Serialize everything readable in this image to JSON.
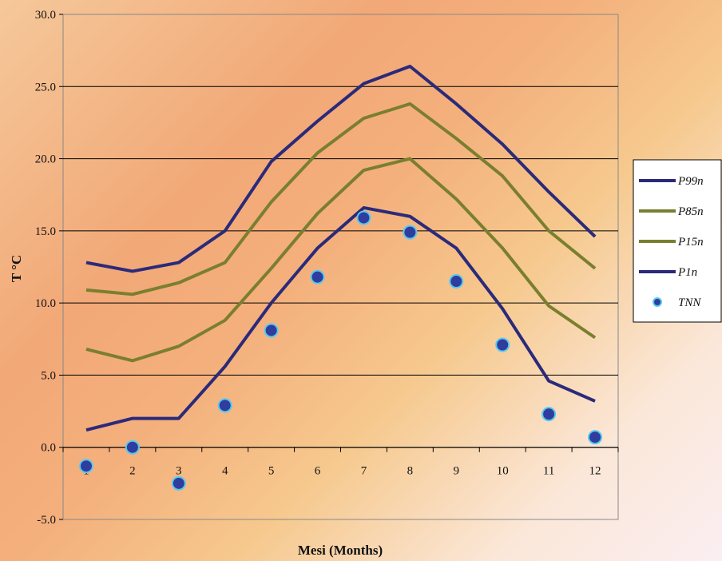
{
  "chart_data": {
    "type": "line",
    "xlabel": "Mesi (Months)",
    "ylabel": "T °C",
    "ylim": [
      -5,
      30
    ],
    "yticks": [
      "-5.0",
      "0.0",
      "5.0",
      "10.0",
      "15.0",
      "20.0",
      "25.0",
      "30.0"
    ],
    "ytick_values": [
      -5,
      0,
      5,
      10,
      15,
      20,
      25,
      30
    ],
    "categories": [
      "1",
      "2",
      "3",
      "4",
      "5",
      "6",
      "7",
      "8",
      "9",
      "10",
      "11",
      "12"
    ],
    "grid": "horizontal",
    "legend_position": "right",
    "series": [
      {
        "name": "P99n",
        "kind": "line",
        "color": "#2b2a7a",
        "values": [
          12.8,
          12.2,
          12.8,
          15.0,
          19.8,
          22.6,
          25.2,
          26.4,
          23.8,
          21.0,
          17.7,
          14.6
        ]
      },
      {
        "name": "P85n",
        "kind": "line",
        "color": "#7a7f2f",
        "values": [
          10.9,
          10.6,
          11.4,
          12.8,
          17.0,
          20.4,
          22.8,
          23.8,
          21.4,
          18.8,
          15.0,
          12.4
        ]
      },
      {
        "name": "P15n",
        "kind": "line",
        "color": "#7a7f2f",
        "values": [
          6.8,
          6.0,
          7.0,
          8.8,
          12.4,
          16.2,
          19.2,
          20.0,
          17.2,
          13.8,
          9.8,
          7.6
        ]
      },
      {
        "name": "P1n",
        "kind": "line",
        "color": "#2b2a7a",
        "values": [
          1.2,
          2.0,
          2.0,
          5.6,
          10.0,
          13.8,
          16.6,
          16.0,
          13.8,
          9.6,
          4.6,
          3.2
        ]
      },
      {
        "name": "TNN",
        "kind": "scatter",
        "color": "#2e3d9e",
        "edge": "#58c8f0",
        "values": [
          -1.3,
          0.0,
          -2.5,
          2.9,
          8.1,
          11.8,
          15.9,
          14.9,
          11.5,
          7.1,
          2.3,
          0.7
        ]
      }
    ]
  }
}
